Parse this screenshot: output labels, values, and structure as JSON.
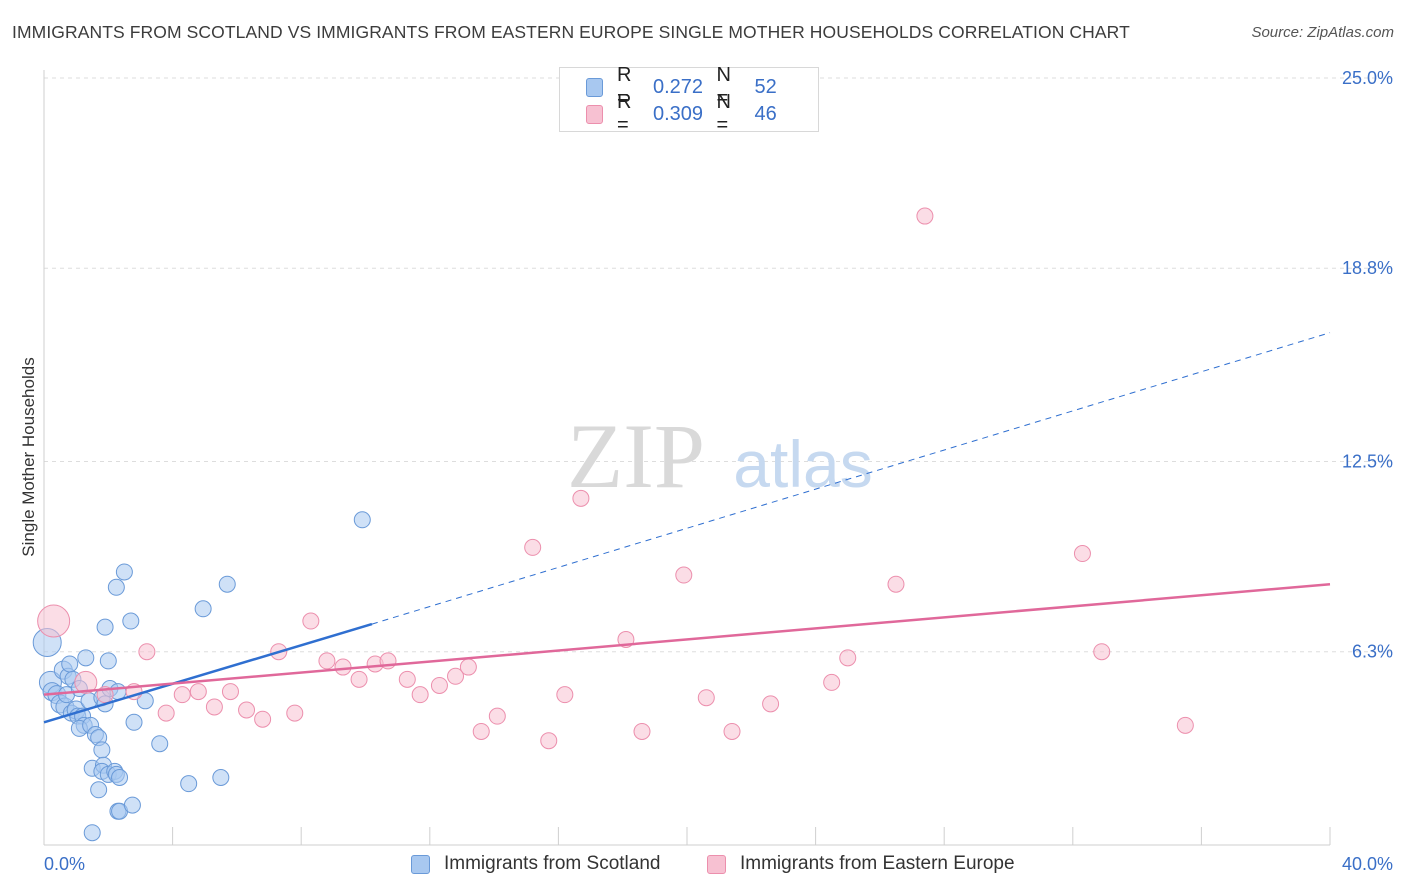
{
  "header": {
    "title": "IMMIGRANTS FROM SCOTLAND VS IMMIGRANTS FROM EASTERN EUROPE SINGLE MOTHER HOUSEHOLDS CORRELATION CHART",
    "source": "Source: ZipAtlas.com"
  },
  "watermark": {
    "zip": "ZIP",
    "atlas": "atlas"
  },
  "legend": {
    "rows": [
      {
        "r_label": "R =",
        "r_value": "0.272",
        "n_label": "N =",
        "n_value": "52",
        "color": "#a8c8f0"
      },
      {
        "r_label": "R =",
        "r_value": "0.309",
        "n_label": "N =",
        "n_value": "46",
        "color": "#f7c1d2"
      }
    ]
  },
  "bottom_legend": {
    "scotland": "Immigrants from Scotland",
    "eastern_europe": "Immigrants from Eastern Europe"
  },
  "chart_data": {
    "type": "scatter",
    "xlabel": "",
    "ylabel": "Single Mother Households",
    "xlim": [
      0,
      40
    ],
    "ylim": [
      0,
      25
    ],
    "x_tick_labels": [
      "0.0%",
      "40.0%"
    ],
    "y_ticks": [
      6.3,
      12.5,
      18.8,
      25.0
    ],
    "y_tick_labels": [
      "6.3%",
      "12.5%",
      "18.8%",
      "25.0%"
    ],
    "grid": "horizontal dashed",
    "legend_position": "top-center",
    "colors": {
      "scotland_fill": "#a8c8f0",
      "scotland_stroke": "#6a9ad8",
      "scotland_line": "#2f6fd0",
      "eastern_fill": "#f7c1d2",
      "eastern_stroke": "#ec8fad",
      "eastern_line": "#e0689a",
      "tick_label": "#3a6fc7"
    },
    "series": [
      {
        "name": "Immigrants from Scotland",
        "trend": {
          "x0": 0,
          "y0": 4.0,
          "x1": 10.2,
          "y1": 7.2,
          "dash_to_x": 40,
          "dash_to_y": 16.7
        },
        "points": [
          [
            0.1,
            6.6,
            14
          ],
          [
            0.2,
            5.3,
            11
          ],
          [
            0.25,
            5.0,
            9
          ],
          [
            0.4,
            4.9,
            9
          ],
          [
            0.5,
            4.6,
            9
          ],
          [
            0.6,
            5.7,
            9
          ],
          [
            0.65,
            4.5,
            9
          ],
          [
            0.7,
            4.9,
            8
          ],
          [
            0.75,
            5.5,
            8
          ],
          [
            0.8,
            5.9,
            8
          ],
          [
            0.85,
            4.3,
            8
          ],
          [
            0.9,
            5.4,
            8
          ],
          [
            1.0,
            4.4,
            9
          ],
          [
            1.05,
            4.2,
            8
          ],
          [
            1.1,
            5.1,
            8
          ],
          [
            1.2,
            4.2,
            8
          ],
          [
            1.25,
            3.9,
            8
          ],
          [
            1.1,
            3.8,
            8
          ],
          [
            1.3,
            6.1,
            8
          ],
          [
            1.4,
            4.7,
            8
          ],
          [
            1.45,
            3.9,
            8
          ],
          [
            1.5,
            2.5,
            8
          ],
          [
            1.5,
            0.4,
            8
          ],
          [
            1.6,
            3.6,
            8
          ],
          [
            1.7,
            3.5,
            8
          ],
          [
            1.7,
            1.8,
            8
          ],
          [
            1.8,
            3.1,
            8
          ],
          [
            1.85,
            2.6,
            8
          ],
          [
            1.8,
            2.4,
            8
          ],
          [
            1.8,
            4.8,
            8
          ],
          [
            1.9,
            7.1,
            8
          ],
          [
            1.9,
            4.6,
            8
          ],
          [
            2.0,
            2.3,
            8
          ],
          [
            2.0,
            6.0,
            8
          ],
          [
            2.05,
            5.1,
            8
          ],
          [
            2.2,
            2.4,
            8
          ],
          [
            2.25,
            2.3,
            8
          ],
          [
            2.3,
            5.0,
            8
          ],
          [
            2.3,
            1.1,
            8
          ],
          [
            2.25,
            8.4,
            8
          ],
          [
            2.35,
            1.1,
            8
          ],
          [
            2.35,
            2.2,
            8
          ],
          [
            2.5,
            8.9,
            8
          ],
          [
            2.7,
            7.3,
            8
          ],
          [
            2.8,
            4.0,
            8
          ],
          [
            2.75,
            1.3,
            8
          ],
          [
            3.15,
            4.7,
            8
          ],
          [
            3.6,
            3.3,
            8
          ],
          [
            4.5,
            2.0,
            8
          ],
          [
            4.95,
            7.7,
            8
          ],
          [
            5.5,
            2.2,
            8
          ],
          [
            5.7,
            8.5,
            8
          ],
          [
            9.9,
            10.6,
            8
          ]
        ]
      },
      {
        "name": "Immigrants from Eastern Europe",
        "trend": {
          "x0": 0,
          "y0": 4.9,
          "x1": 40,
          "y1": 8.5
        },
        "points": [
          [
            0.3,
            7.3,
            16
          ],
          [
            1.3,
            5.3,
            11
          ],
          [
            1.9,
            4.9,
            8
          ],
          [
            2.8,
            5.0,
            8
          ],
          [
            3.2,
            6.3,
            8
          ],
          [
            3.8,
            4.3,
            8
          ],
          [
            4.3,
            4.9,
            8
          ],
          [
            4.8,
            5.0,
            8
          ],
          [
            5.3,
            4.5,
            8
          ],
          [
            5.8,
            5.0,
            8
          ],
          [
            6.3,
            4.4,
            8
          ],
          [
            6.8,
            4.1,
            8
          ],
          [
            7.3,
            6.3,
            8
          ],
          [
            7.8,
            4.3,
            8
          ],
          [
            8.3,
            7.3,
            8
          ],
          [
            8.8,
            6.0,
            8
          ],
          [
            9.3,
            5.8,
            8
          ],
          [
            9.8,
            5.4,
            8
          ],
          [
            10.3,
            5.9,
            8
          ],
          [
            10.7,
            6.0,
            8
          ],
          [
            11.3,
            5.4,
            8
          ],
          [
            11.7,
            4.9,
            8
          ],
          [
            12.3,
            5.2,
            8
          ],
          [
            12.8,
            5.5,
            8
          ],
          [
            13.2,
            5.8,
            8
          ],
          [
            13.6,
            3.7,
            8
          ],
          [
            14.1,
            4.2,
            8
          ],
          [
            15.2,
            9.7,
            8
          ],
          [
            15.7,
            3.4,
            8
          ],
          [
            16.2,
            4.9,
            8
          ],
          [
            16.7,
            11.3,
            8
          ],
          [
            18.1,
            6.7,
            8
          ],
          [
            18.6,
            3.7,
            8
          ],
          [
            19.9,
            8.8,
            8
          ],
          [
            20.6,
            4.8,
            8
          ],
          [
            21.4,
            3.7,
            8
          ],
          [
            22.6,
            4.6,
            8
          ],
          [
            24.5,
            5.3,
            8
          ],
          [
            25.0,
            6.1,
            8
          ],
          [
            26.5,
            8.5,
            8
          ],
          [
            27.4,
            20.5,
            8
          ],
          [
            32.3,
            9.5,
            8
          ],
          [
            32.9,
            6.3,
            8
          ],
          [
            35.5,
            3.9,
            8
          ]
        ]
      }
    ]
  }
}
